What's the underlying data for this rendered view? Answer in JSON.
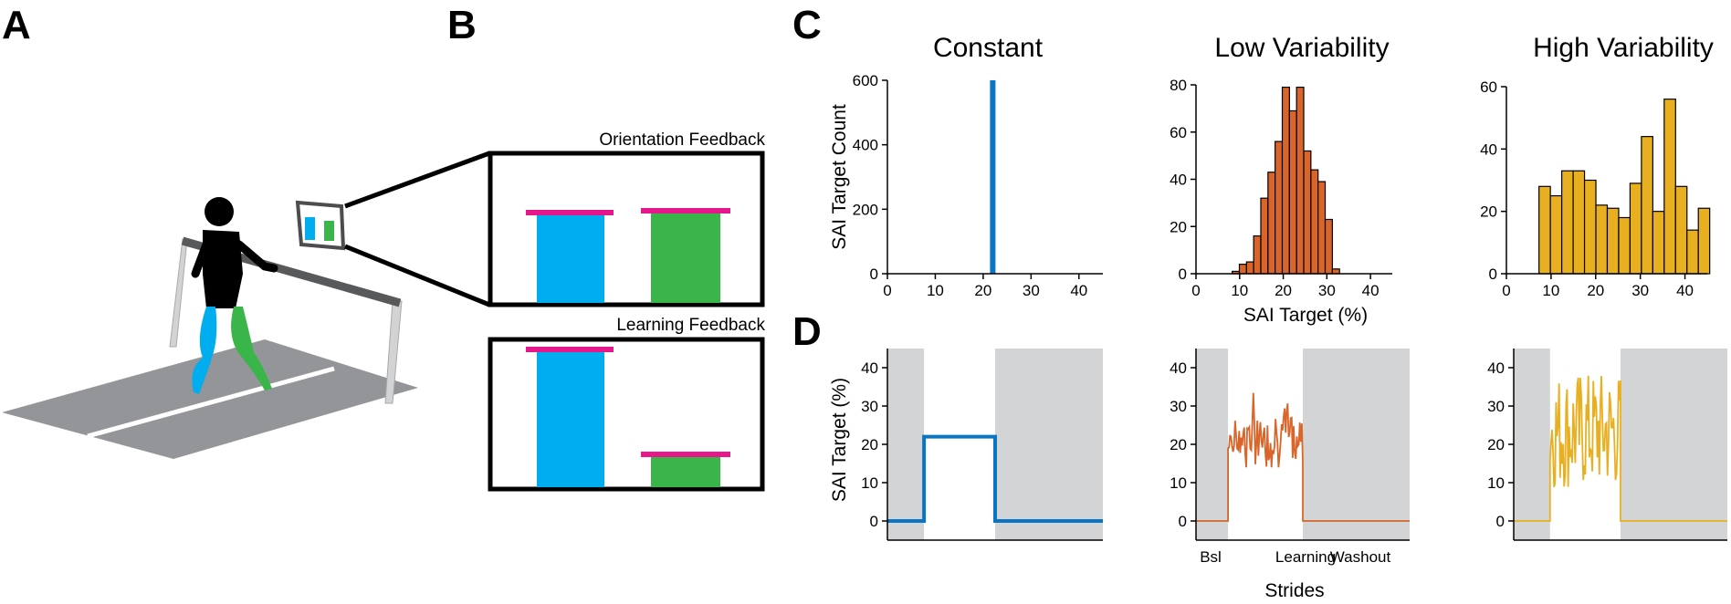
{
  "panel_letters": {
    "a": "A",
    "b": "B",
    "c": "C",
    "d": "D"
  },
  "feedback": {
    "orientation_label": "Orientation Feedback",
    "learning_label": "Learning Feedback"
  },
  "colors": {
    "blue": "#0a75c2",
    "orange": "#d9652a",
    "yellow": "#e8b020",
    "cyan": "#00adef",
    "green": "#39b54a",
    "magenta": "#e6178a",
    "shade": "#d3d4d5"
  },
  "icons": [
    "walker-figure-icon",
    "treadmill-icon",
    "monitor-icon"
  ],
  "chart_data": [
    {
      "type": "bar",
      "title": "Constant",
      "ylabel": "SAI Target Count",
      "xlabel": "",
      "xlim": [
        0,
        45
      ],
      "ylim": [
        0,
        600
      ],
      "xticks": [
        0,
        10,
        20,
        30,
        40
      ],
      "yticks": [
        0,
        200,
        400,
        600
      ],
      "color": "#0a75c2",
      "bins": [
        {
          "x": 22,
          "count": 600
        }
      ]
    },
    {
      "type": "bar",
      "title": "Low Variability",
      "ylabel": "",
      "xlabel": "SAI Target (%)",
      "xlim": [
        0,
        45
      ],
      "ylim": [
        0,
        80
      ],
      "xticks": [
        0,
        10,
        20,
        30,
        40
      ],
      "yticks": [
        0,
        20,
        40,
        60,
        80
      ],
      "color": "#d9652a",
      "bin_width": 1.64,
      "bin_start": 8.3,
      "counts": [
        1,
        4,
        5,
        16,
        32,
        43,
        56,
        79,
        69,
        79,
        52,
        44,
        39,
        23,
        2
      ]
    },
    {
      "type": "bar",
      "title": "High Variability",
      "ylabel": "",
      "xlabel": "",
      "xlim": [
        0,
        45
      ],
      "ylim": [
        0,
        60
      ],
      "xticks": [
        0,
        10,
        20,
        30,
        40
      ],
      "yticks": [
        0,
        20,
        40,
        60
      ],
      "color": "#e8b020",
      "bin_width": 2.55,
      "bin_start": 7.3,
      "counts": [
        28,
        25,
        33,
        33,
        30,
        22,
        21,
        18,
        29,
        44,
        20,
        56,
        28,
        14,
        21
      ]
    },
    {
      "type": "line",
      "title": "",
      "ylabel": "SAI Target (%)",
      "ylim": [
        -5,
        45
      ],
      "yticks": [
        0,
        10,
        20,
        30,
        40
      ],
      "color": "#0a75c2",
      "phases": [
        {
          "name": "Bsl",
          "start": 0,
          "end": 0.17,
          "shaded": true
        },
        {
          "name": "Learning",
          "start": 0.17,
          "end": 0.5,
          "shaded": false
        },
        {
          "name": "Washout",
          "start": 0.5,
          "end": 1.0,
          "shaded": true
        }
      ],
      "baseline": 0,
      "learning_value": 22,
      "learning_range": null
    },
    {
      "type": "line",
      "title": "",
      "ylabel": "",
      "xlabel": "Strides",
      "ylim": [
        -5,
        45
      ],
      "yticks": [
        0,
        10,
        20,
        30,
        40
      ],
      "color": "#d9652a",
      "phases": [
        {
          "name": "Bsl",
          "start": 0,
          "end": 0.15,
          "shaded": true
        },
        {
          "name": "Learning",
          "start": 0.15,
          "end": 0.5,
          "shaded": false
        },
        {
          "name": "Washout",
          "start": 0.5,
          "end": 1.0,
          "shaded": true
        }
      ],
      "phase_labels": [
        "Bsl",
        "Learning",
        "Washout"
      ],
      "baseline": 0,
      "learning_value": 22,
      "learning_range": [
        14,
        34
      ]
    },
    {
      "type": "line",
      "title": "",
      "ylabel": "",
      "ylim": [
        -5,
        45
      ],
      "yticks": [
        0,
        10,
        20,
        30,
        40
      ],
      "color": "#e8b020",
      "phases": [
        {
          "name": "Bsl",
          "start": 0,
          "end": 0.17,
          "shaded": true
        },
        {
          "name": "Learning",
          "start": 0.17,
          "end": 0.5,
          "shaded": false
        },
        {
          "name": "Washout",
          "start": 0.5,
          "end": 1.0,
          "shaded": true
        }
      ],
      "baseline": 0,
      "learning_value": 22,
      "learning_range": [
        8,
        39
      ]
    }
  ]
}
